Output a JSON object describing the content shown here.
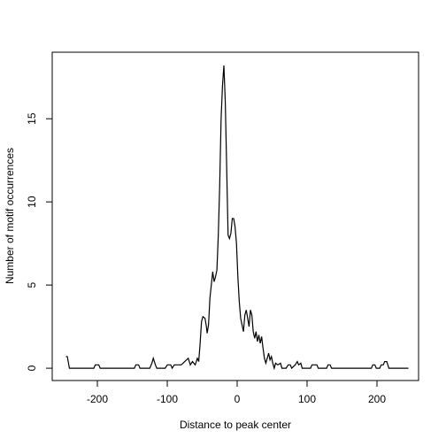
{
  "chart_data": {
    "type": "line",
    "xlabel": "Distance to peak center",
    "ylabel": "Number of motif occurrences",
    "color": "#000000",
    "x": [
      -245,
      -243,
      -240,
      -205,
      -203,
      -198,
      -196,
      -147,
      -145,
      -141,
      -139,
      -125,
      -122,
      -120,
      -117,
      -115,
      -103,
      -100,
      -95,
      -93,
      -90,
      -80,
      -75,
      -70,
      -67,
      -64,
      -60,
      -57,
      -55,
      -53,
      -51,
      -49,
      -46,
      -44,
      -43,
      -41,
      -39,
      -37,
      -35,
      -33,
      -31,
      -29,
      -27,
      -25,
      -23,
      -21,
      -19,
      -17,
      -15,
      -13,
      -11,
      -9,
      -7,
      -5,
      -3,
      -1,
      1,
      3,
      5,
      7,
      9,
      11,
      13,
      15,
      17,
      19,
      21,
      23,
      25,
      27,
      29,
      31,
      33,
      35,
      37,
      39,
      41,
      43,
      45,
      47,
      49,
      51,
      53,
      55,
      58,
      62,
      64,
      70,
      73,
      76,
      78,
      83,
      86,
      88,
      91,
      93,
      105,
      107,
      114,
      116,
      128,
      130,
      133,
      135,
      192,
      194,
      197,
      199,
      204,
      206,
      209,
      211,
      214,
      217,
      245
    ],
    "values": [
      0.7,
      0.7,
      0,
      0,
      0.2,
      0.2,
      0,
      0,
      0.2,
      0.2,
      0,
      0,
      0.3,
      0.6,
      0.2,
      0,
      0,
      0.2,
      0.2,
      0,
      0.2,
      0.2,
      0.4,
      0.6,
      0.2,
      0.4,
      0.2,
      0.6,
      0.4,
      1.5,
      2.8,
      3.1,
      3.0,
      2.5,
      2.1,
      2.6,
      4.2,
      5.0,
      5.8,
      5.2,
      5.5,
      5.9,
      8,
      11,
      15,
      17,
      18.2,
      16,
      12,
      8,
      7.8,
      8.1,
      9,
      9,
      8.5,
      7.5,
      5.5,
      4,
      3,
      2.6,
      2.2,
      3.2,
      3.5,
      3.0,
      2.5,
      3.5,
      3.2,
      2.2,
      1.8,
      2.2,
      1.6,
      2.0,
      1.5,
      1.9,
      1.2,
      0.6,
      0.3,
      0.6,
      0.9,
      0.5,
      0.7,
      0.3,
      0,
      0.3,
      0.2,
      0.3,
      0,
      0,
      0.2,
      0.2,
      0,
      0.2,
      0.4,
      0.2,
      0.3,
      0,
      0,
      0.2,
      0.2,
      0,
      0,
      0.2,
      0.2,
      0,
      0,
      0.2,
      0.2,
      0,
      0,
      0.2,
      0.2,
      0.4,
      0.4,
      0,
      0
    ],
    "xlim": [
      -264.6,
      259.5
    ],
    "ylim": [
      -0.74,
      19.0
    ],
    "xticks": [
      -200,
      -100,
      0,
      100,
      200
    ],
    "yticks": [
      0,
      5,
      10,
      15
    ],
    "grid": false
  }
}
